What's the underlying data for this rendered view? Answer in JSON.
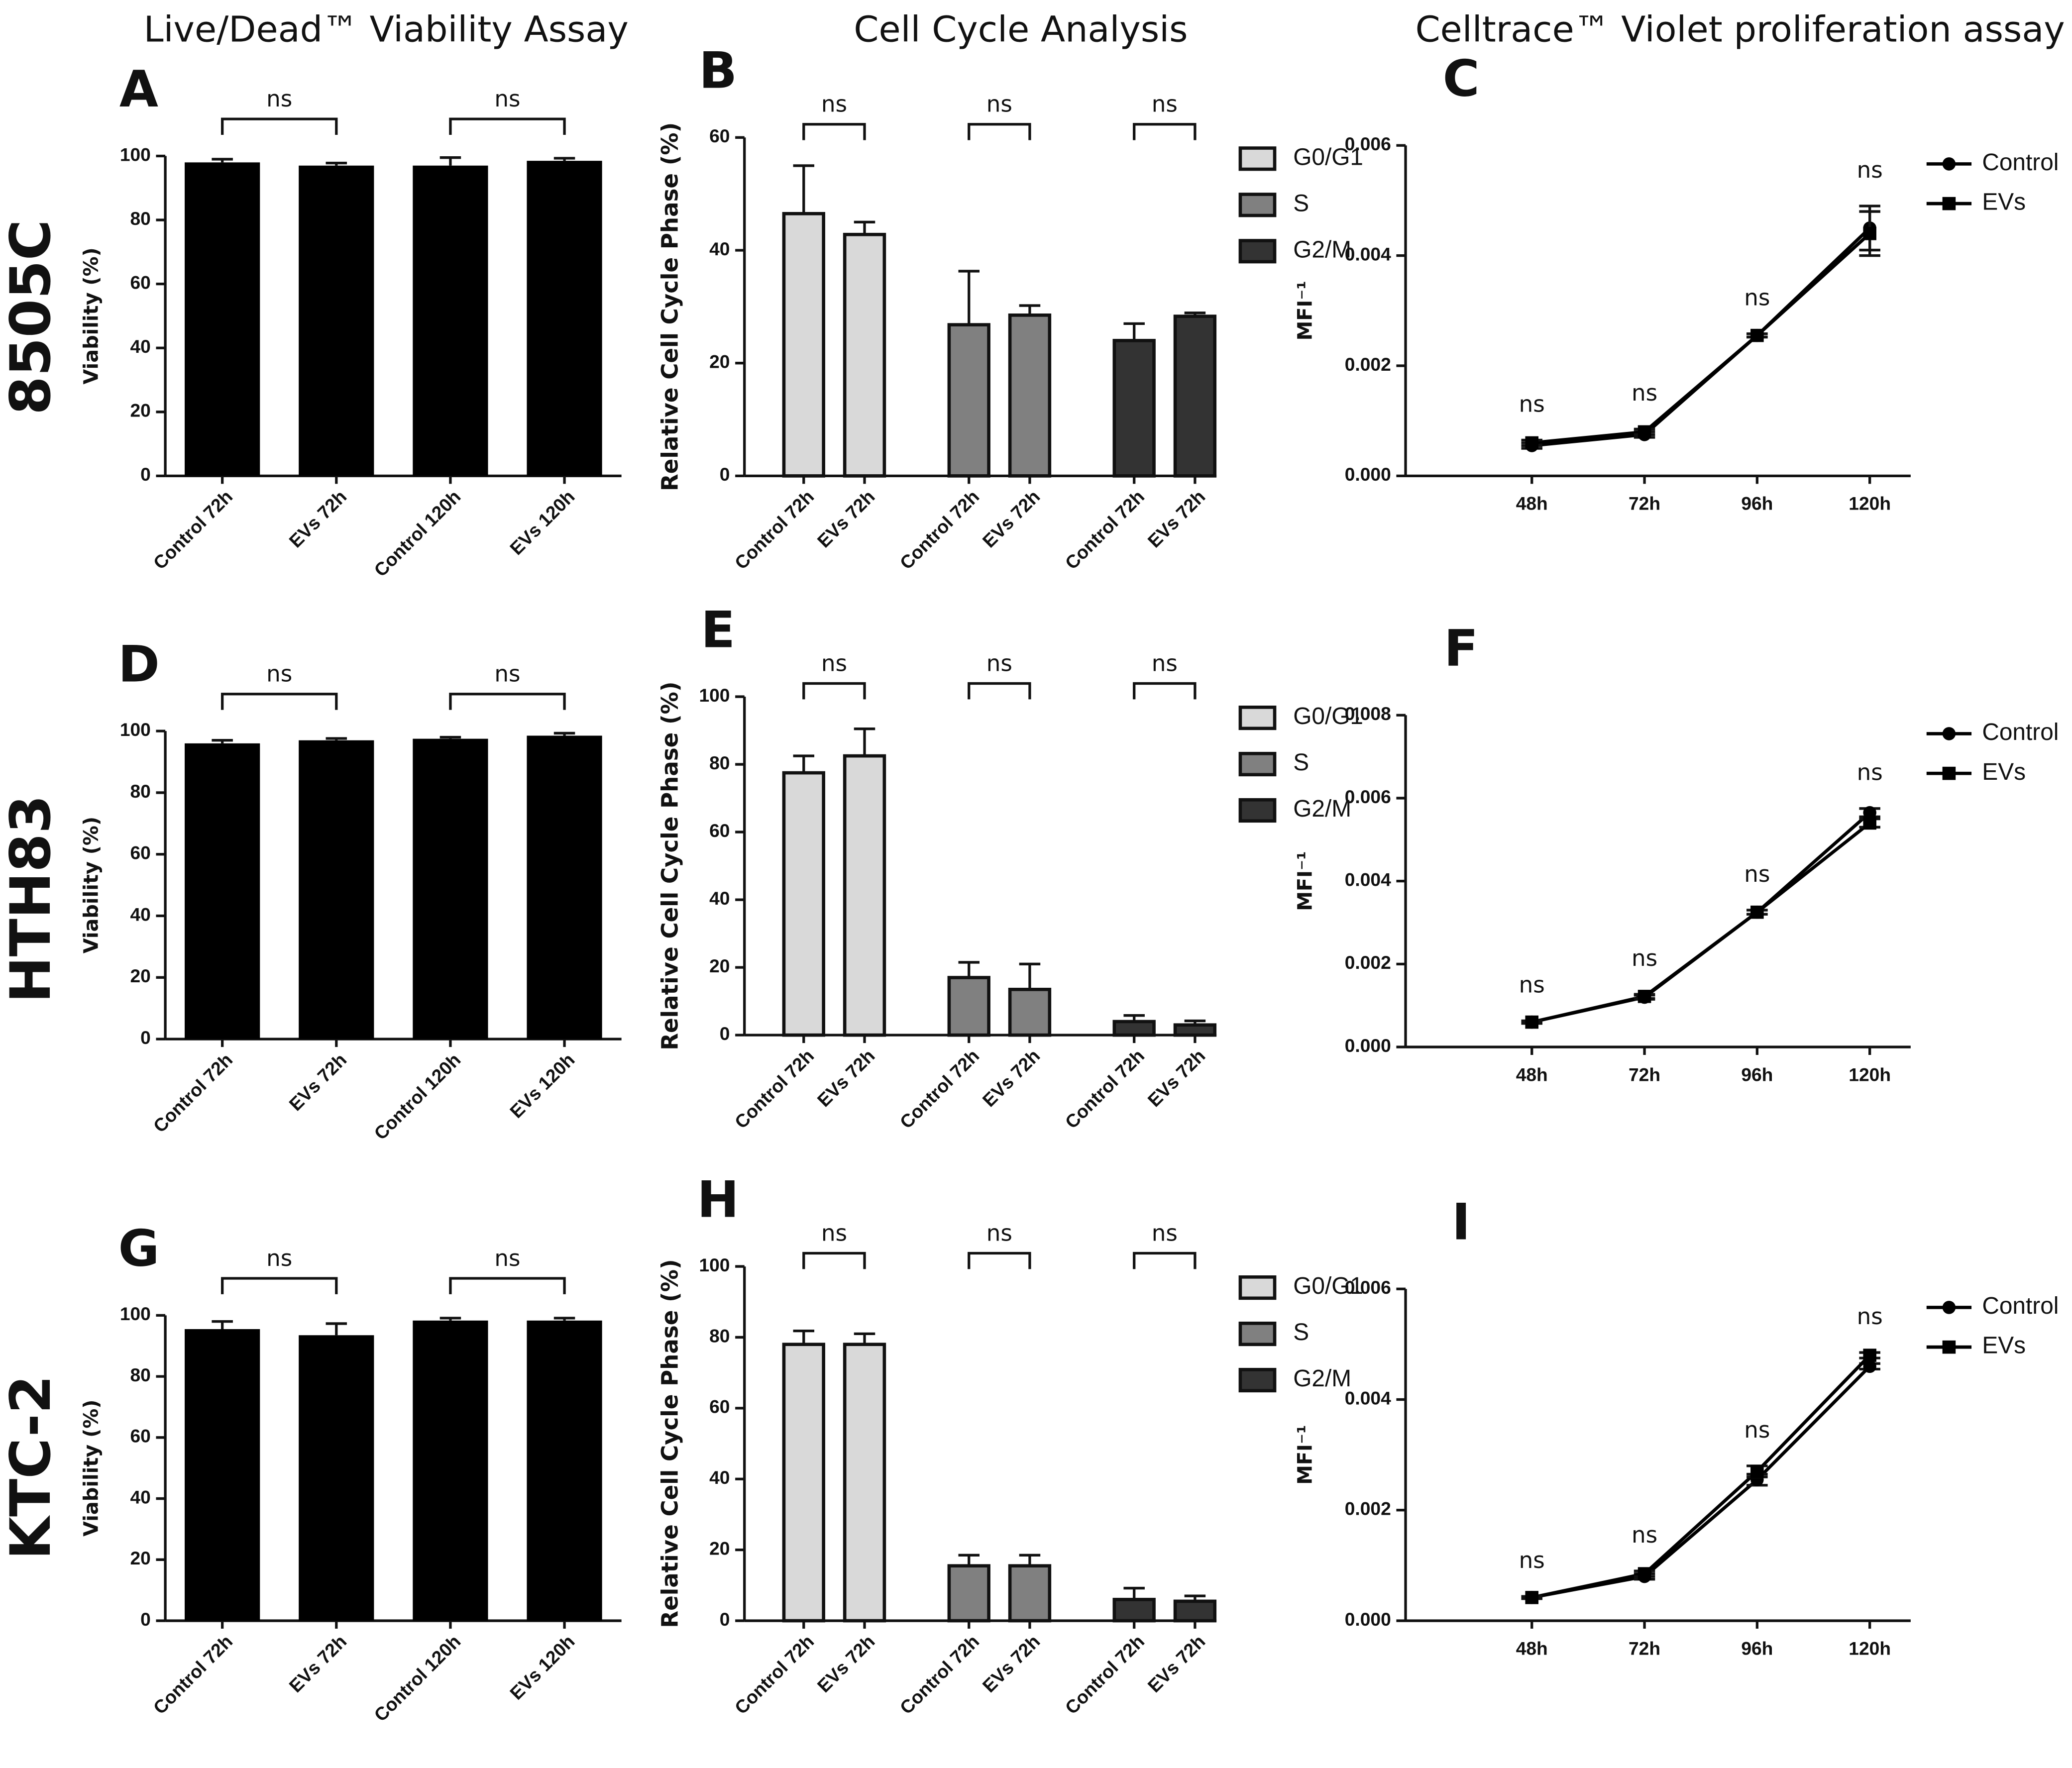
{
  "column_titles": [
    "Live/Dead™ Viability Assay",
    "Cell Cycle Analysis",
    "Celltrace™ Violet proliferation assay"
  ],
  "row_labels": [
    "8505C",
    "HTH83",
    "KTC-2"
  ],
  "chart_data": [
    {
      "type": "bar",
      "panel": "A",
      "ylabel": "Viability (%)",
      "categories": [
        "Control 72h",
        "EVs 72h",
        "Control 120h",
        "EVs 120h"
      ],
      "values": [
        98,
        97,
        97,
        98.5
      ],
      "errors": [
        1,
        0.8,
        2.5,
        0.8
      ],
      "color": "#000000",
      "ylim": [
        0,
        100
      ],
      "yticks": [
        0,
        20,
        40,
        60,
        80,
        100
      ],
      "annotations": [
        "ns",
        "ns"
      ]
    },
    {
      "type": "grouped_bar",
      "panel": "B",
      "ylabel": "Relative Cell Cycle Phase (%)",
      "categories": [
        "Control 72h",
        "EVs 72h"
      ],
      "series": [
        {
          "name": "G0/G1",
          "color": "#d9d9d9",
          "values": [
            46.5,
            42.8
          ],
          "errors": [
            8.5,
            2.2
          ]
        },
        {
          "name": "S",
          "color": "#808080",
          "values": [
            26.8,
            28.5
          ],
          "errors": [
            9.5,
            1.7
          ]
        },
        {
          "name": "G2/M",
          "color": "#333333",
          "values": [
            24,
            28.3
          ],
          "errors": [
            3,
            0.6
          ]
        }
      ],
      "ylim": [
        0,
        60
      ],
      "yticks": [
        0,
        20,
        40,
        60
      ],
      "annotations": [
        "ns",
        "ns",
        "ns"
      ]
    },
    {
      "type": "line",
      "panel": "C",
      "ylabel": "MFI⁻¹",
      "categories": [
        "48h",
        "72h",
        "96h",
        "120h"
      ],
      "series": [
        {
          "name": "Control",
          "color": "#000000",
          "marker": "circle",
          "values": [
            0.00055,
            0.00075,
            0.00255,
            0.0045
          ],
          "errors": [
            5e-05,
            5e-05,
            3e-05,
            0.0004
          ]
        },
        {
          "name": "EVs",
          "color": "#000000",
          "marker": "square",
          "values": [
            0.0006,
            0.0008,
            0.00255,
            0.0044
          ],
          "errors": [
            5e-05,
            5e-05,
            3e-05,
            0.0004
          ]
        }
      ],
      "ylim": [
        0,
        0.006
      ],
      "yticks": [
        {
          "value": 0,
          "label": "0.000"
        },
        {
          "value": 0.002,
          "label": "0.002"
        },
        {
          "value": 0.004,
          "label": "0.004"
        },
        {
          "value": 0.006,
          "label": "0.006"
        }
      ],
      "annotations": [
        "ns",
        "ns",
        "ns",
        "ns"
      ]
    },
    {
      "type": "bar",
      "panel": "D",
      "ylabel": "Viability (%)",
      "categories": [
        "Control 72h",
        "EVs 72h",
        "Control 120h",
        "EVs 120h"
      ],
      "values": [
        96,
        97,
        97.5,
        98.5
      ],
      "errors": [
        1,
        0.6,
        0.5,
        0.8
      ],
      "color": "#000000",
      "ylim": [
        0,
        100
      ],
      "yticks": [
        0,
        20,
        40,
        60,
        80,
        100
      ],
      "annotations": [
        "ns",
        "ns"
      ]
    },
    {
      "type": "grouped_bar",
      "panel": "E",
      "ylabel": "Relative Cell Cycle Phase (%)",
      "categories": [
        "Control 72h",
        "EVs 72h"
      ],
      "series": [
        {
          "name": "G0/G1",
          "color": "#d9d9d9",
          "values": [
            77.5,
            82.5
          ],
          "errors": [
            5,
            8
          ]
        },
        {
          "name": "S",
          "color": "#808080",
          "values": [
            17,
            13.5
          ],
          "errors": [
            4.5,
            7.5
          ]
        },
        {
          "name": "G2/M",
          "color": "#333333",
          "values": [
            4,
            3
          ],
          "errors": [
            1.8,
            1.2
          ]
        }
      ],
      "ylim": [
        0,
        100
      ],
      "yticks": [
        0,
        20,
        40,
        60,
        80,
        100
      ],
      "annotations": [
        "ns",
        "ns",
        "ns"
      ]
    },
    {
      "type": "line",
      "panel": "F",
      "ylabel": "MFI⁻¹",
      "categories": [
        "48h",
        "72h",
        "96h",
        "120h"
      ],
      "series": [
        {
          "name": "Control",
          "color": "#000000",
          "marker": "circle",
          "values": [
            0.0006,
            0.0012,
            0.00325,
            0.00565
          ],
          "errors": [
            3e-05,
            5e-05,
            5e-05,
            0.0001
          ]
        },
        {
          "name": "EVs",
          "color": "#000000",
          "marker": "square",
          "values": [
            0.0006,
            0.00122,
            0.00325,
            0.0054
          ],
          "errors": [
            3e-05,
            5e-05,
            5e-05,
            0.0001
          ]
        }
      ],
      "ylim": [
        0,
        0.008
      ],
      "yticks": [
        {
          "value": 0,
          "label": "0.000"
        },
        {
          "value": 0.002,
          "label": "0.002"
        },
        {
          "value": 0.004,
          "label": "0.004"
        },
        {
          "value": 0.006,
          "label": "0.006"
        },
        {
          "value": 0.008,
          "label": "0.008"
        }
      ],
      "annotations": [
        "ns",
        "ns",
        "ns",
        "ns"
      ]
    },
    {
      "type": "bar",
      "panel": "G",
      "ylabel": "Viability (%)",
      "categories": [
        "Control 72h",
        "EVs 72h",
        "Control 120h",
        "EVs 120h"
      ],
      "values": [
        95.5,
        93.5,
        98.3,
        98.3
      ],
      "errors": [
        2.5,
        3.8,
        0.8,
        0.8
      ],
      "color": "#000000",
      "ylim": [
        0,
        100
      ],
      "yticks": [
        0,
        20,
        40,
        60,
        80,
        100
      ],
      "annotations": [
        "ns",
        "ns"
      ]
    },
    {
      "type": "grouped_bar",
      "panel": "H",
      "ylabel": "Relative Cell Cycle Phase (%)",
      "categories": [
        "Control 72h",
        "EVs 72h"
      ],
      "series": [
        {
          "name": "G0/G1",
          "color": "#d9d9d9",
          "values": [
            78,
            78
          ],
          "errors": [
            3.8,
            3
          ]
        },
        {
          "name": "S",
          "color": "#808080",
          "values": [
            15.5,
            15.5
          ],
          "errors": [
            3,
            3
          ]
        },
        {
          "name": "G2/M",
          "color": "#333333",
          "values": [
            6,
            5.5
          ],
          "errors": [
            3.2,
            1.5
          ]
        }
      ],
      "ylim": [
        0,
        100
      ],
      "yticks": [
        0,
        20,
        40,
        60,
        80,
        100
      ],
      "annotations": [
        "ns",
        "ns",
        "ns"
      ]
    },
    {
      "type": "line",
      "panel": "I",
      "ylabel": "MFI⁻¹",
      "categories": [
        "48h",
        "72h",
        "96h",
        "120h"
      ],
      "series": [
        {
          "name": "Control",
          "color": "#000000",
          "marker": "circle",
          "values": [
            0.00042,
            0.0008,
            0.00255,
            0.0046
          ],
          "errors": [
            2e-05,
            5e-05,
            0.0001,
            5e-05
          ]
        },
        {
          "name": "EVs",
          "color": "#000000",
          "marker": "square",
          "values": [
            0.00042,
            0.00085,
            0.0027,
            0.0048
          ],
          "errors": [
            2e-05,
            5e-05,
            0.0001,
            5e-05
          ]
        }
      ],
      "ylim": [
        0,
        0.006
      ],
      "yticks": [
        {
          "value": 0,
          "label": "0.000"
        },
        {
          "value": 0.002,
          "label": "0.002"
        },
        {
          "value": 0.004,
          "label": "0.004"
        },
        {
          "value": 0.006,
          "label": "0.006"
        }
      ],
      "annotations": [
        "ns",
        "ns",
        "ns",
        "ns"
      ]
    }
  ]
}
